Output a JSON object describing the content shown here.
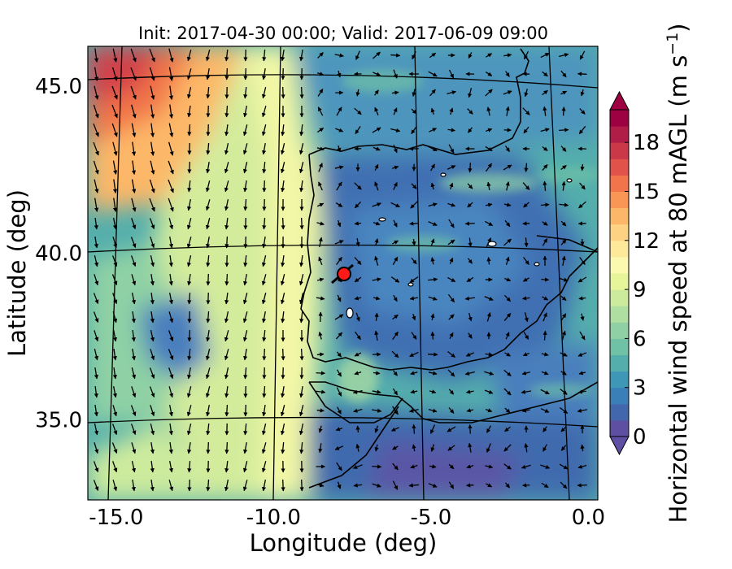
{
  "title": "Init: 2017-04-30 00:00; Valid: 2017-06-09 09:00",
  "x_axis": {
    "label": "Longitude (deg)",
    "ticks": [
      {
        "value": -15,
        "label": "-15.0"
      },
      {
        "value": -10,
        "label": "-10.0"
      },
      {
        "value": -5,
        "label": "-5.0"
      },
      {
        "value": 0,
        "label": "0.0"
      }
    ],
    "range": [
      -15.9,
      0.3
    ]
  },
  "y_axis": {
    "label": "Latitude (deg)",
    "ticks": [
      {
        "value": 35,
        "label": "35.0"
      },
      {
        "value": 40,
        "label": "40.0"
      },
      {
        "value": 45,
        "label": "45.0"
      }
    ],
    "range": [
      32.6,
      46.2
    ]
  },
  "colorbar": {
    "label": "Horizontal wind speed at 80 mAGL (m s",
    "label_sup": "−1",
    "label_end": ")",
    "min": 0,
    "max": 20,
    "extend": "both",
    "ticks": [
      {
        "value": 0,
        "label": "0"
      },
      {
        "value": 3,
        "label": "3"
      },
      {
        "value": 6,
        "label": "6"
      },
      {
        "value": 9,
        "label": "9"
      },
      {
        "value": 12,
        "label": "12"
      },
      {
        "value": 15,
        "label": "15"
      },
      {
        "value": 18,
        "label": "18"
      }
    ],
    "colors": [
      "#5e4fa2",
      "#4367ad",
      "#3a7fb8",
      "#3f97b7",
      "#54aeac",
      "#6fc2a5",
      "#8fd1a4",
      "#b0dfa2",
      "#cdeb9d",
      "#e7f59a",
      "#fbf8b0",
      "#fee99a",
      "#fdd282",
      "#fdb768",
      "#f99656",
      "#f1744a",
      "#e0524a",
      "#cb3847",
      "#b01e47",
      "#9e0142"
    ]
  },
  "chart_data": {
    "type": "map",
    "title": "Init: 2017-04-30 00:00; Valid: 2017-06-09 09:00",
    "xlabel": "Longitude (deg)",
    "ylabel": "Latitude (deg)",
    "xlim": [
      -15.9,
      0.3
    ],
    "ylim": [
      32.6,
      46.2
    ],
    "grid": true,
    "field": "Horizontal wind speed at 80 mAGL (m s^-1)",
    "field_range": [
      0,
      20
    ],
    "marker": {
      "lon": -7.6,
      "lat": 39.3,
      "color": "#ff0000"
    }
  }
}
